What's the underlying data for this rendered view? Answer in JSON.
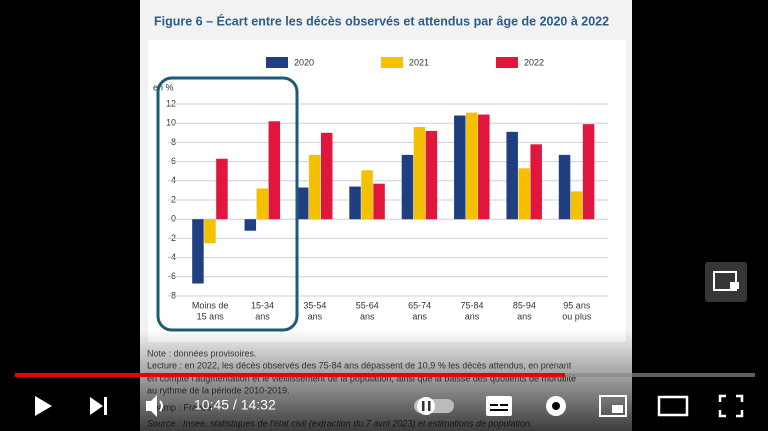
{
  "chart_data": {
    "type": "bar",
    "title": "Figure 6 – Écart entre les décès observés et attendus par âge de 2020 à 2022",
    "y_label": "en %",
    "categories": [
      [
        "Moins de",
        "15 ans"
      ],
      [
        "15-34",
        "ans"
      ],
      [
        "35-54",
        "ans"
      ],
      [
        "55-64",
        "ans"
      ],
      [
        "65-74",
        "ans"
      ],
      [
        "75-84",
        "ans"
      ],
      [
        "85-94",
        "ans"
      ],
      [
        "95 ans",
        "ou plus"
      ]
    ],
    "series": [
      {
        "name": "2020",
        "color": "#1f3f80",
        "values": [
          -6.7,
          -1.2,
          3.3,
          3.4,
          6.7,
          10.8,
          9.1,
          6.7
        ]
      },
      {
        "name": "2021",
        "color": "#f5c000",
        "values": [
          -2.5,
          3.2,
          6.7,
          5.1,
          9.6,
          11.1,
          5.3,
          2.9
        ]
      },
      {
        "name": "2022",
        "color": "#e0163c",
        "values": [
          6.3,
          10.2,
          9.0,
          3.7,
          9.2,
          10.9,
          7.8,
          9.9
        ]
      }
    ],
    "ylim": [
      -8,
      12
    ],
    "yticks": [
      12,
      10,
      8,
      6,
      4,
      2,
      0,
      -2,
      -4,
      -6,
      -8
    ],
    "grid": true,
    "legend": "top"
  },
  "notes": [
    "Note : données provisoires.",
    "Lecture : en 2022, les décès observés des 75-84 ans dépassent de 10,9 % les décès attendus, en prenant",
    "en compte l'augmentation et le vieillissement de la population, ainsi que la baisse des quotients de mortalité",
    "au rythme de la période 2010-2019.",
    "Champ : France",
    "Source : Insee, statistiques de l'état civil (extraction du 7 avril 2023) et estimations de population."
  ],
  "player": {
    "time": "10:45 / 14:32"
  }
}
